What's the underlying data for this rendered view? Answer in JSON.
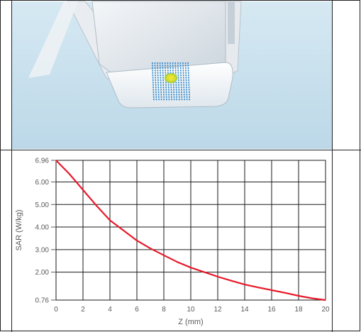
{
  "colors": {
    "scene_background": "#c5dfed",
    "grid": "#1a1a1a",
    "curve": "#e8192a",
    "hotspot": "#f2dc1e",
    "probe_points": "#2f86c9"
  },
  "chart_data": {
    "type": "line",
    "title": "",
    "xlabel": "Z (mm)",
    "ylabel": "SAR (W/kg)",
    "xlim": [
      0,
      20
    ],
    "ylim": [
      0.76,
      6.96
    ],
    "x_ticks": [
      "0",
      "2",
      "4",
      "6",
      "8",
      "10",
      "12",
      "14",
      "16",
      "18",
      "20"
    ],
    "y_ticks": [
      "6.96",
      "6.00",
      "5.00",
      "4.00",
      "3.00",
      "2.00",
      "0.76"
    ],
    "y_tick_values": [
      6.96,
      6.0,
      5.0,
      4.0,
      3.0,
      2.0,
      0.76
    ],
    "grid": true,
    "series": [
      {
        "x": [
          0,
          1,
          2,
          3,
          4,
          5,
          6,
          7,
          8,
          9,
          10,
          11,
          12,
          13,
          14,
          15,
          16,
          17,
          18,
          19,
          20
        ],
        "y": [
          6.96,
          6.35,
          5.65,
          4.95,
          4.3,
          3.85,
          3.4,
          3.05,
          2.75,
          2.45,
          2.2,
          2.0,
          1.8,
          1.62,
          1.45,
          1.32,
          1.2,
          1.08,
          0.95,
          0.84,
          0.76
        ]
      }
    ]
  }
}
